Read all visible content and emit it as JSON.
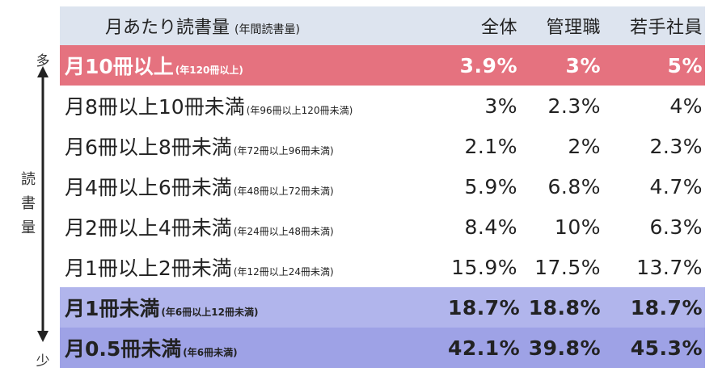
{
  "axis": {
    "top_label": "多",
    "bottom_label": "少",
    "vertical_label": "読書量"
  },
  "table": {
    "header": {
      "label": "月あたり読書量",
      "sublabel": "(年間読書量)",
      "columns": [
        "全体",
        "管理職",
        "若手社員"
      ]
    },
    "rows": [
      {
        "label": "月10冊以上",
        "note": "(年120冊以上)",
        "values": [
          "3.9%",
          "3%",
          "5%"
        ]
      },
      {
        "label": "月8冊以上10冊未満",
        "note": "(年96冊以上120冊未満)",
        "values": [
          "3%",
          "2.3%",
          "4%"
        ]
      },
      {
        "label": "月6冊以上8冊未満",
        "note": "(年72冊以上96冊未満)",
        "values": [
          "2.1%",
          "2%",
          "2.3%"
        ]
      },
      {
        "label": "月4冊以上6冊未満",
        "note": "(年48冊以上72冊未満)",
        "values": [
          "5.9%",
          "6.8%",
          "4.7%"
        ]
      },
      {
        "label": "月2冊以上4冊未満",
        "note": "(年24冊以上48冊未満)",
        "values": [
          "8.4%",
          "10%",
          "6.3%"
        ]
      },
      {
        "label": "月1冊以上2冊未満",
        "note": "(年12冊以上24冊未満)",
        "values": [
          "15.9%",
          "17.5%",
          "13.7%"
        ]
      },
      {
        "label": "月1冊未満",
        "note": "(年6冊以上12冊未満)",
        "values": [
          "18.7%",
          "18.8%",
          "18.7%"
        ]
      },
      {
        "label": "月0.5冊未満",
        "note": "(年6冊未満)",
        "values": [
          "42.1%",
          "39.8%",
          "45.3%"
        ]
      }
    ]
  },
  "colors": {
    "header_bg": "#dde4ef",
    "highlight_top": "#e5727f",
    "highlight_low1": "#b1b5ec",
    "highlight_low2": "#9ea2e6"
  },
  "chart_data": {
    "type": "table",
    "columns": [
      "全体",
      "管理職",
      "若手社員"
    ],
    "categories": [
      "月10冊以上",
      "月8冊以上10冊未満",
      "月6冊以上8冊未満",
      "月4冊以上6冊未満",
      "月2冊以上4冊未満",
      "月1冊以上2冊未満",
      "月1冊未満",
      "月0.5冊未満"
    ],
    "series": [
      {
        "name": "全体",
        "values": [
          3.9,
          3,
          2.1,
          5.9,
          8.4,
          15.9,
          18.7,
          42.1
        ]
      },
      {
        "name": "管理職",
        "values": [
          3,
          2.3,
          2,
          6.8,
          10,
          17.5,
          18.8,
          39.8
        ]
      },
      {
        "name": "若手社員",
        "values": [
          5,
          4,
          2.3,
          4.7,
          6.3,
          13.7,
          18.7,
          45.3
        ]
      }
    ]
  }
}
